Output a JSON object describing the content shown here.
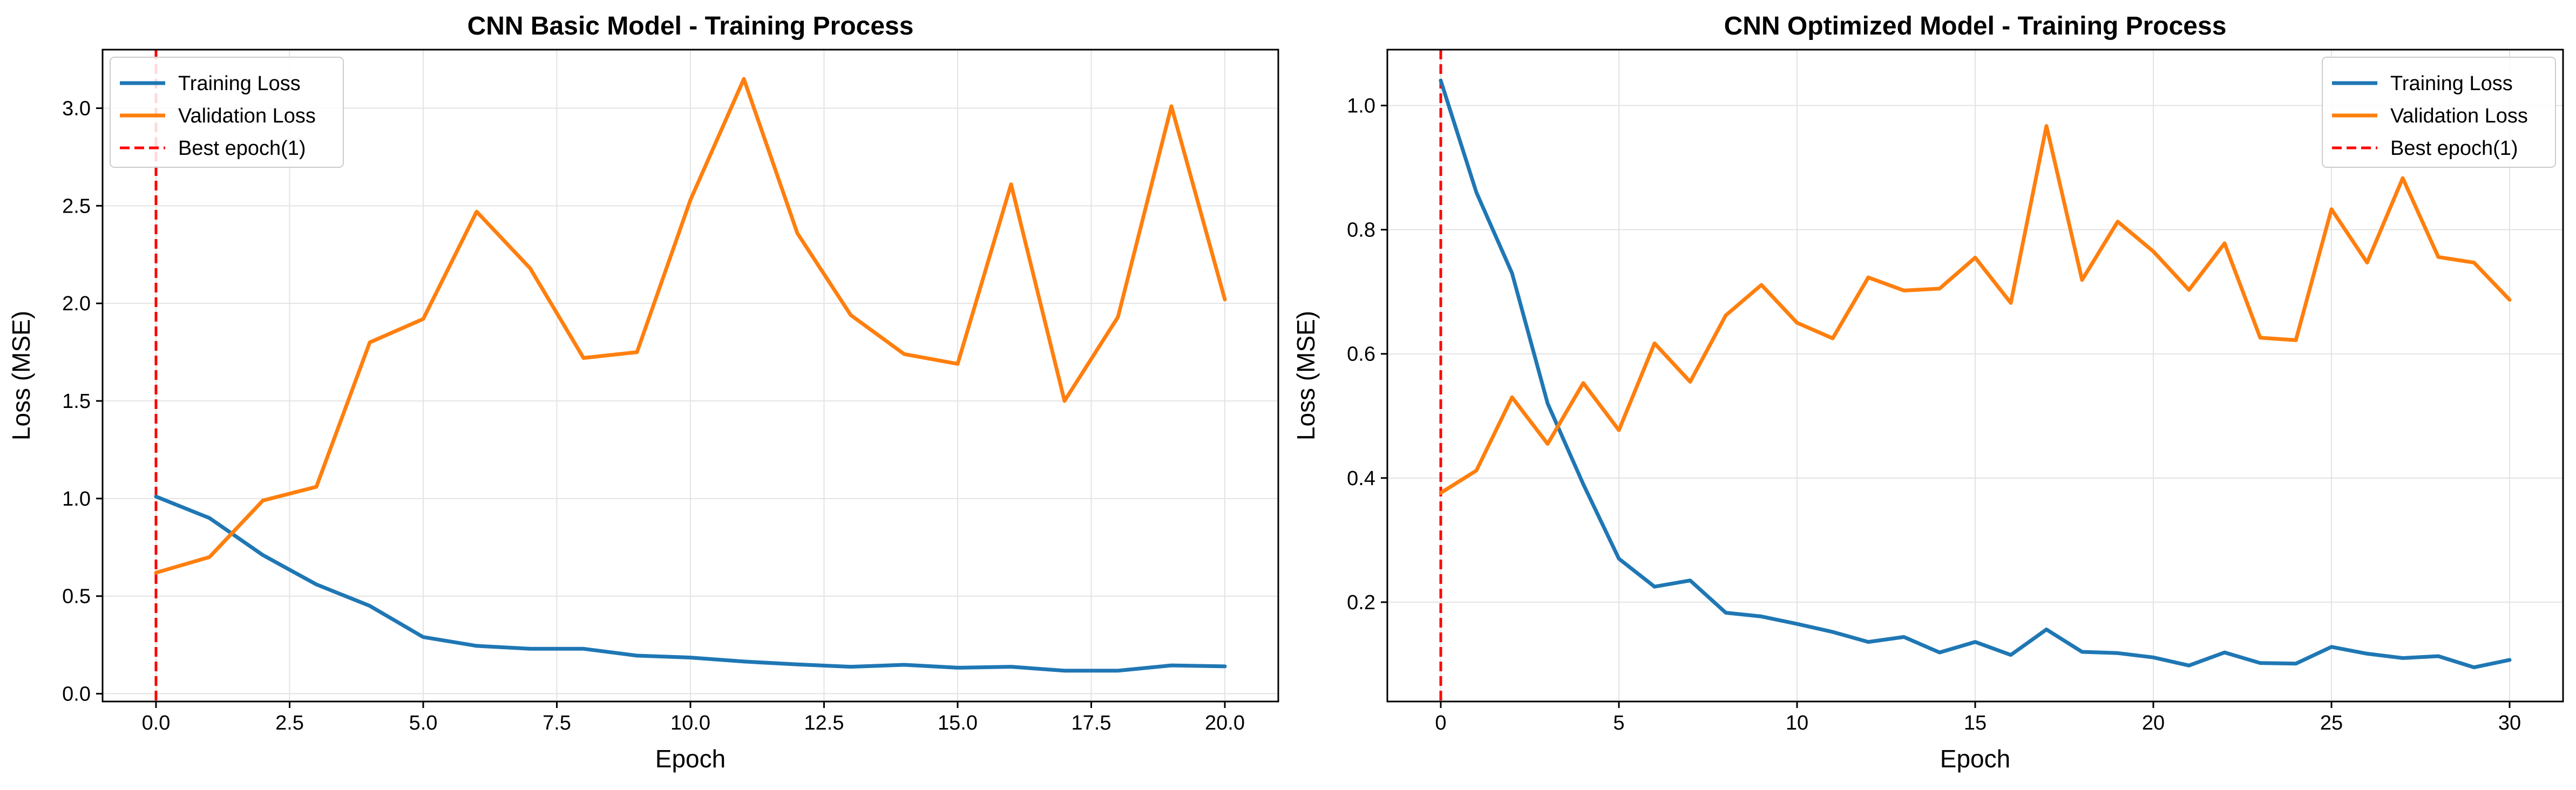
{
  "chart_data": [
    {
      "type": "line",
      "title": "CNN Basic Model - Training Process",
      "xlabel": "Epoch",
      "ylabel": "Loss (MSE)",
      "xlim": [
        -1,
        21
      ],
      "ylim": [
        -0.04,
        3.3
      ],
      "xticks": [
        0,
        2.5,
        5,
        7.5,
        10,
        12.5,
        15,
        17.5,
        20
      ],
      "xtick_labels": [
        "0.0",
        "2.5",
        "5.0",
        "7.5",
        "10.0",
        "12.5",
        "15.0",
        "17.5",
        "20.0"
      ],
      "yticks": [
        0,
        0.5,
        1,
        1.5,
        2,
        2.5,
        3
      ],
      "ytick_labels": [
        "0.0",
        "0.5",
        "1.0",
        "1.5",
        "2.0",
        "2.5",
        "3.0"
      ],
      "grid": true,
      "legend_position": "top-left",
      "x": [
        0,
        1,
        2,
        3,
        4,
        5,
        6,
        7,
        8,
        9,
        10,
        11,
        12,
        13,
        14,
        15,
        16,
        17,
        18,
        19,
        20
      ],
      "series": [
        {
          "name": "Training Loss",
          "color": "#1f77b4",
          "values": [
            1.01,
            0.9,
            0.71,
            0.56,
            0.45,
            0.29,
            0.245,
            0.23,
            0.23,
            0.195,
            0.185,
            0.165,
            0.15,
            0.138,
            0.148,
            0.133,
            0.138,
            0.118,
            0.118,
            0.145,
            0.14
          ]
        },
        {
          "name": "Validation Loss",
          "color": "#ff7f0e",
          "values": [
            0.62,
            0.7,
            0.99,
            1.06,
            1.8,
            1.92,
            2.47,
            2.18,
            1.72,
            1.75,
            2.53,
            3.15,
            2.36,
            1.94,
            1.74,
            1.69,
            2.61,
            1.5,
            1.93,
            3.01,
            2.02
          ]
        }
      ],
      "vline": {
        "name": "Best epoch(1)",
        "x": 0,
        "color": "#ff0000"
      }
    },
    {
      "type": "line",
      "title": "CNN Optimized Model - Training Process",
      "xlabel": "Epoch",
      "ylabel": "Loss (MSE)",
      "xlim": [
        -1.5,
        31.5
      ],
      "ylim": [
        0.04,
        1.09
      ],
      "xticks": [
        0,
        5,
        10,
        15,
        20,
        25,
        30
      ],
      "xtick_labels": [
        "0",
        "5",
        "10",
        "15",
        "20",
        "25",
        "30"
      ],
      "yticks": [
        0.2,
        0.4,
        0.6,
        0.8,
        1.0
      ],
      "ytick_labels": [
        "0.2",
        "0.4",
        "0.6",
        "0.8",
        "1.0"
      ],
      "grid": true,
      "legend_position": "top-right",
      "x": [
        0,
        1,
        2,
        3,
        4,
        5,
        6,
        7,
        8,
        9,
        10,
        11,
        12,
        13,
        14,
        15,
        16,
        17,
        18,
        19,
        20,
        21,
        22,
        23,
        24,
        25,
        26,
        27,
        28,
        29,
        30
      ],
      "series": [
        {
          "name": "Training Loss",
          "color": "#1f77b4",
          "values": [
            1.04,
            0.86,
            0.73,
            0.52,
            0.39,
            0.27,
            0.225,
            0.235,
            0.183,
            0.177,
            0.165,
            0.152,
            0.136,
            0.144,
            0.119,
            0.136,
            0.115,
            0.156,
            0.12,
            0.118,
            0.111,
            0.098,
            0.119,
            0.102,
            0.101,
            0.128,
            0.117,
            0.11,
            0.113,
            0.095,
            0.107
          ]
        },
        {
          "name": "Validation Loss",
          "color": "#ff7f0e",
          "values": [
            0.376,
            0.412,
            0.53,
            0.455,
            0.553,
            0.477,
            0.617,
            0.555,
            0.662,
            0.711,
            0.65,
            0.625,
            0.723,
            0.702,
            0.705,
            0.755,
            0.682,
            0.967,
            0.719,
            0.813,
            0.765,
            0.703,
            0.778,
            0.626,
            0.622,
            0.833,
            0.747,
            0.883,
            0.756,
            0.747,
            0.687
          ]
        }
      ],
      "vline": {
        "name": "Best epoch(1)",
        "x": 0,
        "color": "#ff0000"
      }
    }
  ]
}
